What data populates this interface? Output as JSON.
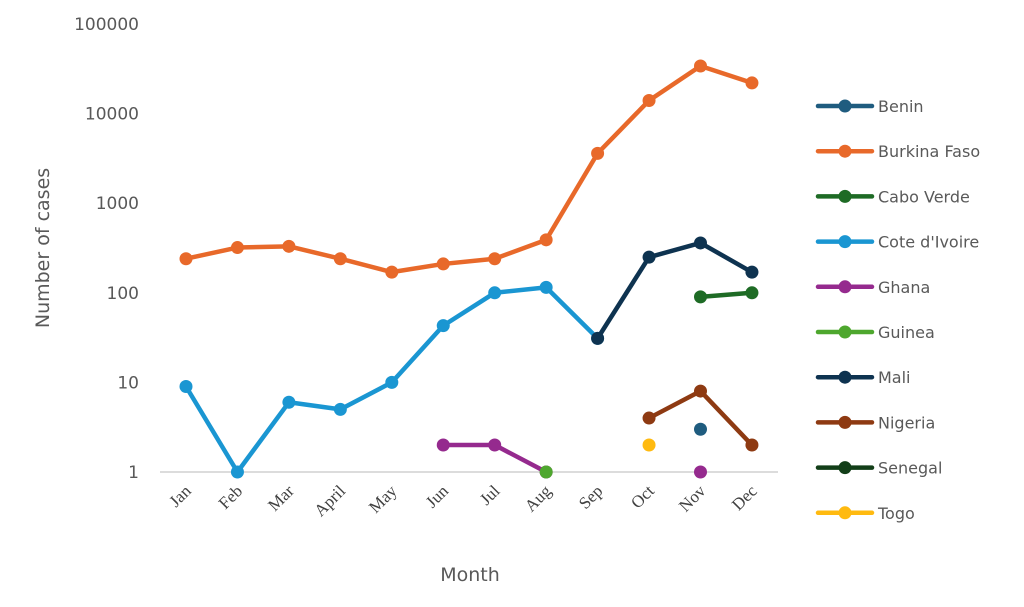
{
  "chart_data": {
    "type": "line",
    "title": "",
    "xlabel": "Month",
    "ylabel": "Number of cases",
    "yscale": "log",
    "ylim": [
      1,
      100000
    ],
    "yticks": [
      "1",
      "10",
      "100",
      "1000",
      "10000",
      "100000"
    ],
    "grid": false,
    "legend_position": "right",
    "categories": [
      "Jan",
      "Feb",
      "Mar",
      "April",
      "May",
      "Jun",
      "Jul",
      "Aug",
      "Sep",
      "Oct",
      "Nov",
      "Dec"
    ],
    "series": [
      {
        "name": "Benin",
        "color": "#1F5C7F",
        "values": [
          null,
          null,
          null,
          null,
          null,
          null,
          null,
          null,
          null,
          null,
          3,
          null
        ]
      },
      {
        "name": "Burkina Faso",
        "color": "#E8692A",
        "values": [
          240,
          320,
          330,
          240,
          170,
          210,
          240,
          390,
          3600,
          14000,
          34000,
          22000
        ]
      },
      {
        "name": "Cabo Verde",
        "color": "#1E6B25",
        "values": [
          null,
          null,
          null,
          null,
          null,
          null,
          null,
          null,
          null,
          null,
          90,
          100
        ]
      },
      {
        "name": "Cote d'Ivoire",
        "color": "#1A96D2",
        "values": [
          9,
          1,
          6,
          5,
          10,
          43,
          100,
          115,
          31,
          null,
          null,
          null
        ]
      },
      {
        "name": "Ghana",
        "color": "#952A8E",
        "values": [
          null,
          null,
          null,
          null,
          null,
          2,
          2,
          1,
          null,
          null,
          1,
          null
        ]
      },
      {
        "name": "Guinea",
        "color": "#4EA72E",
        "values": [
          null,
          null,
          null,
          null,
          null,
          null,
          null,
          1,
          null,
          null,
          null,
          null
        ]
      },
      {
        "name": "Mali",
        "color": "#0E3350",
        "values": [
          null,
          null,
          null,
          null,
          null,
          null,
          null,
          null,
          31,
          250,
          360,
          170
        ]
      },
      {
        "name": "Nigeria",
        "color": "#8E3A12",
        "values": [
          null,
          null,
          null,
          null,
          null,
          null,
          null,
          null,
          null,
          4,
          8,
          2
        ]
      },
      {
        "name": "Senegal",
        "color": "#123E18",
        "values": [
          null,
          null,
          null,
          null,
          null,
          null,
          null,
          null,
          null,
          null,
          null,
          null
        ]
      },
      {
        "name": "Togo",
        "color": "#FFBA10",
        "values": [
          null,
          null,
          null,
          null,
          null,
          null,
          null,
          null,
          null,
          2,
          null,
          null
        ]
      }
    ]
  }
}
